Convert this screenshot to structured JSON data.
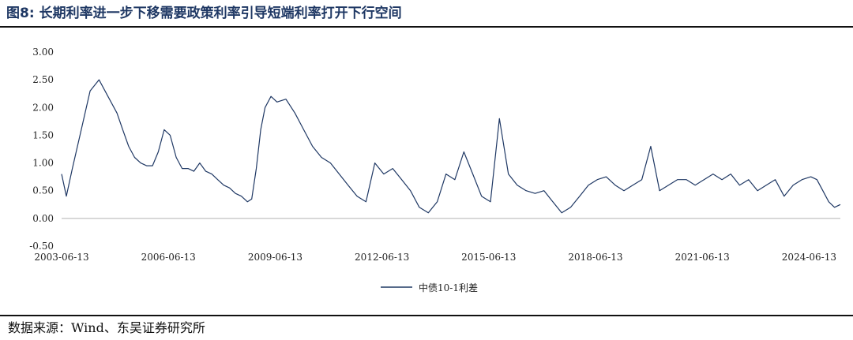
{
  "figure": {
    "number": "图8:",
    "title": "长期利率进一步下移需要政策利率引导短端利率打开下行空间",
    "source": "数据来源：Wind、东吴证券研究所"
  },
  "chart_data": {
    "type": "line",
    "title": "",
    "xlabel": "",
    "ylabel": "",
    "ylim": [
      -0.5,
      3.0
    ],
    "xlim": [
      "2003-06-13",
      "2025-04-30"
    ],
    "y_ticks": [
      "3.00",
      "2.50",
      "2.00",
      "1.50",
      "1.00",
      "0.50",
      "0.00",
      "-0.50"
    ],
    "x_ticks": [
      "2003-06-13",
      "2006-06-13",
      "2009-06-13",
      "2012-06-13",
      "2015-06-13",
      "2018-06-13",
      "2021-06-13",
      "2024-06-13"
    ],
    "grid": false,
    "legend": {
      "position": "bottom",
      "entries": [
        "中债10-1利差"
      ]
    },
    "colors": {
      "series": "#1f3864",
      "axis": "#b0b0b0"
    },
    "series": [
      {
        "name": "中债10-1利差",
        "x": [
          "2003-06-13",
          "2003-08-01",
          "2003-10-01",
          "2004-01-01",
          "2004-04-01",
          "2004-07-01",
          "2004-10-01",
          "2005-01-01",
          "2005-03-01",
          "2005-05-01",
          "2005-07-01",
          "2005-09-01",
          "2005-11-01",
          "2006-01-01",
          "2006-03-01",
          "2006-05-01",
          "2006-07-01",
          "2006-09-01",
          "2006-11-01",
          "2007-01-01",
          "2007-03-01",
          "2007-05-01",
          "2007-07-01",
          "2007-09-01",
          "2007-11-01",
          "2008-01-01",
          "2008-03-01",
          "2008-05-01",
          "2008-07-01",
          "2008-09-01",
          "2008-10-15",
          "2008-12-01",
          "2009-01-15",
          "2009-03-01",
          "2009-05-01",
          "2009-07-01",
          "2009-10-01",
          "2010-01-01",
          "2010-04-01",
          "2010-07-01",
          "2010-10-01",
          "2011-01-01",
          "2011-04-01",
          "2011-07-01",
          "2011-10-01",
          "2012-01-01",
          "2012-04-01",
          "2012-07-01",
          "2012-10-01",
          "2013-01-01",
          "2013-04-01",
          "2013-07-01",
          "2013-10-01",
          "2014-01-01",
          "2014-04-01",
          "2014-07-01",
          "2014-10-01",
          "2015-01-01",
          "2015-04-01",
          "2015-07-01",
          "2015-10-01",
          "2016-01-01",
          "2016-04-01",
          "2016-07-01",
          "2016-10-01",
          "2017-01-01",
          "2017-04-01",
          "2017-07-01",
          "2017-10-01",
          "2018-01-01",
          "2018-04-01",
          "2018-07-01",
          "2018-10-01",
          "2019-01-01",
          "2019-04-01",
          "2019-07-01",
          "2019-10-01",
          "2020-01-01",
          "2020-04-01",
          "2020-07-01",
          "2020-10-01",
          "2021-01-01",
          "2021-04-01",
          "2021-07-01",
          "2021-10-01",
          "2022-01-01",
          "2022-04-01",
          "2022-07-01",
          "2022-10-01",
          "2023-01-01",
          "2023-04-01",
          "2023-07-01",
          "2023-10-01",
          "2024-01-01",
          "2024-04-01",
          "2024-07-01",
          "2024-09-01",
          "2024-11-01",
          "2025-01-01",
          "2025-03-01",
          "2025-04-30"
        ],
        "values": [
          0.8,
          0.4,
          0.9,
          1.6,
          2.3,
          2.5,
          2.2,
          1.9,
          1.6,
          1.3,
          1.1,
          1.0,
          0.95,
          0.95,
          1.2,
          1.6,
          1.5,
          1.1,
          0.9,
          0.9,
          0.85,
          1.0,
          0.85,
          0.8,
          0.7,
          0.6,
          0.55,
          0.45,
          0.4,
          0.3,
          0.35,
          0.9,
          1.6,
          2.0,
          2.2,
          2.1,
          2.15,
          1.9,
          1.6,
          1.3,
          1.1,
          1.0,
          0.8,
          0.6,
          0.4,
          0.3,
          1.0,
          0.8,
          0.9,
          0.7,
          0.5,
          0.2,
          0.1,
          0.3,
          0.8,
          0.7,
          1.2,
          0.8,
          0.4,
          0.3,
          1.8,
          0.8,
          0.6,
          0.5,
          0.45,
          0.5,
          0.3,
          0.1,
          0.2,
          0.4,
          0.6,
          0.7,
          0.75,
          0.6,
          0.5,
          0.6,
          0.7,
          1.3,
          0.5,
          0.6,
          0.7,
          0.7,
          0.6,
          0.7,
          0.8,
          0.7,
          0.8,
          0.6,
          0.7,
          0.5,
          0.6,
          0.7,
          0.4,
          0.6,
          0.7,
          0.75,
          0.7,
          0.5,
          0.3,
          0.2,
          0.25
        ]
      }
    ]
  }
}
